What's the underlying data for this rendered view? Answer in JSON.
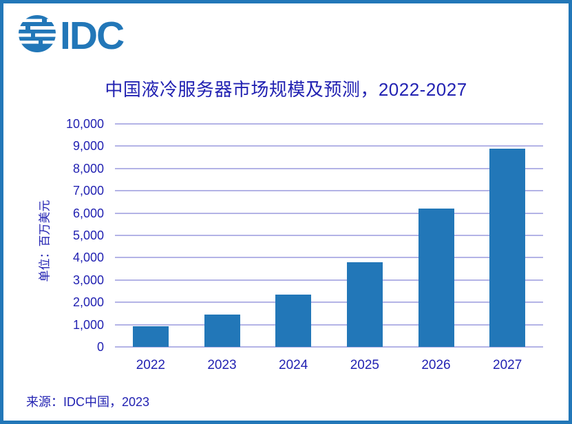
{
  "page": {
    "background": "#FFFFFF",
    "frame_border_color": "#2277B8"
  },
  "logo": {
    "text": "IDC",
    "color": "#2277B8"
  },
  "chart_data": {
    "type": "bar",
    "title": "中国液冷服务器市场规模及预测，2022-2027",
    "xlabel": "",
    "ylabel": "单位：百万美元",
    "categories": [
      "2022",
      "2023",
      "2024",
      "2025",
      "2026",
      "2027"
    ],
    "values": [
      930,
      1450,
      2360,
      3800,
      6200,
      8900
    ],
    "ylim": [
      0,
      10000
    ],
    "ytick_interval": 1000,
    "ytick_labels": [
      "0",
      "1,000",
      "2,000",
      "3,000",
      "4,000",
      "5,000",
      "6,000",
      "7,000",
      "8,000",
      "9,000",
      "10,000"
    ],
    "grid": true,
    "legend_position": "none",
    "bar_color": "#2277B8",
    "gridline_color": "#B3B3E6",
    "text_color": "#2222B2"
  },
  "footer": {
    "source": "来源：IDC中国，2023"
  }
}
